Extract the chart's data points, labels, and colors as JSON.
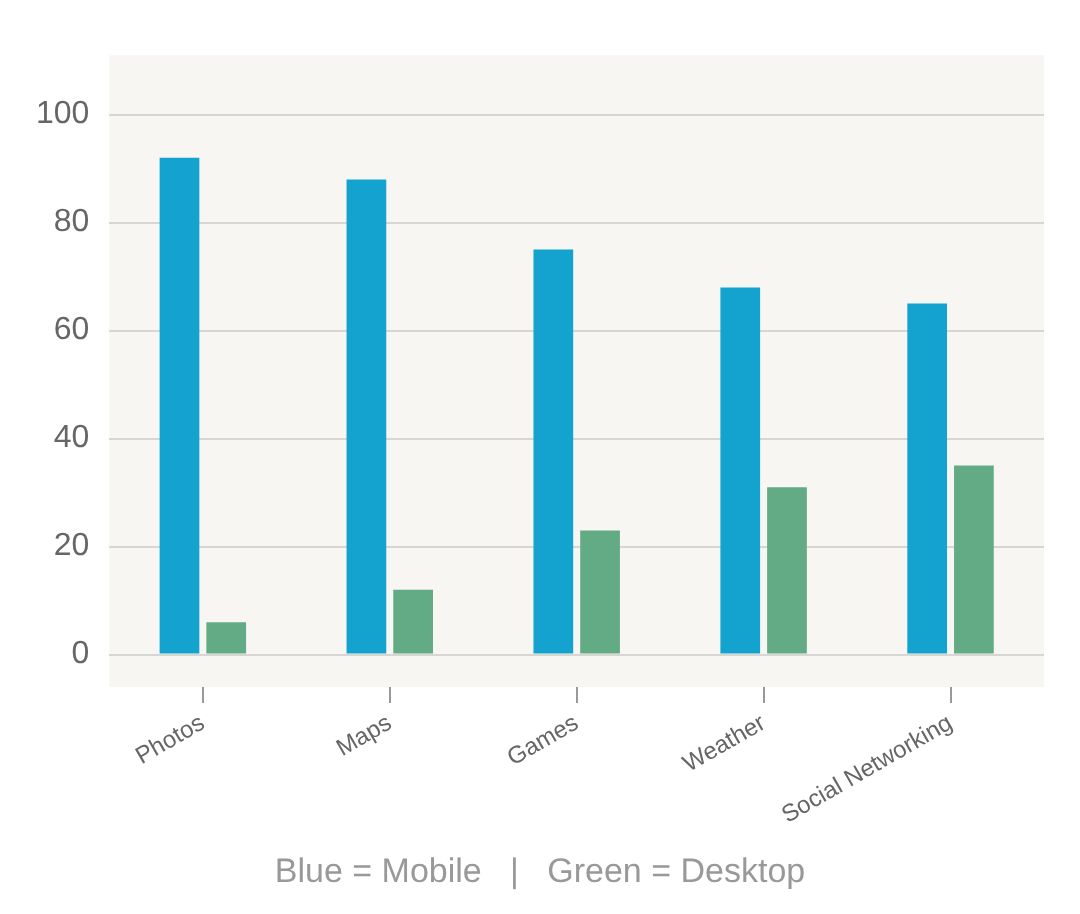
{
  "chart_data": {
    "type": "bar",
    "categories": [
      "Photos",
      "Maps",
      "Games",
      "Weather",
      "Social Networking"
    ],
    "series": [
      {
        "color": "#14a3cf",
        "values": [
          92,
          88,
          75,
          68,
          65
        ]
      },
      {
        "color": "#62ab85",
        "values": [
          6,
          12,
          23,
          31,
          35
        ]
      }
    ],
    "ylim": [
      -6,
      111
    ],
    "yticks": [
      0,
      20,
      40,
      60,
      80,
      100
    ],
    "grid": "y",
    "legend": false,
    "annotations": [
      "Blue = Mobile   |   Green = Desktop"
    ]
  }
}
